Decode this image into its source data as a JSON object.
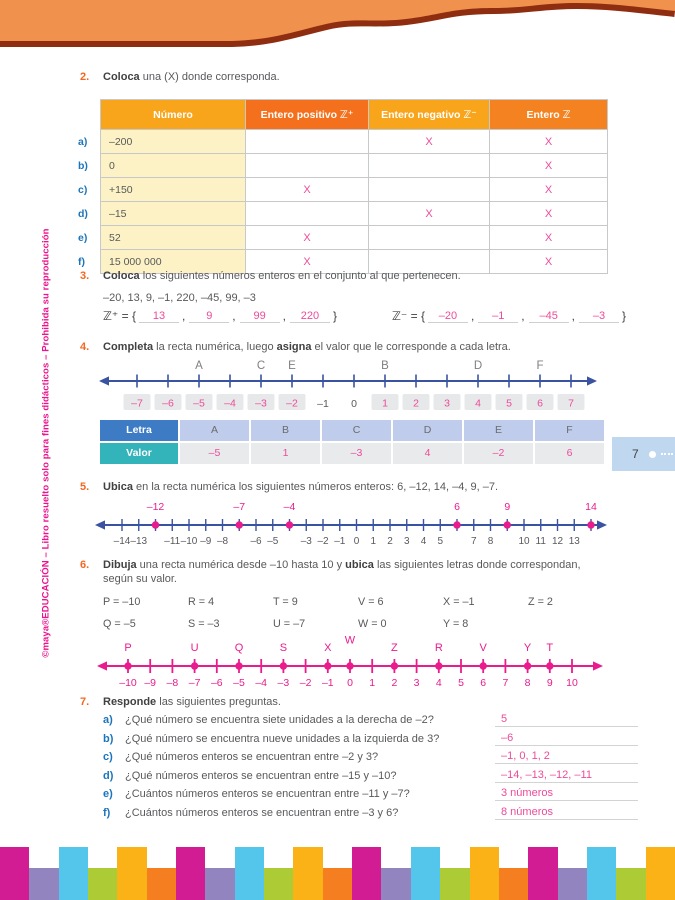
{
  "page": {
    "tab_number": "7",
    "copyright_bold": "©maya®EDUCACIÓN",
    "copyright_rest": " – Libro resuelto solo para fines didácticos – Prohibida su reproducción"
  },
  "colors": {
    "wave_orange": "#F0914E",
    "wave_brown": "#8E2D10",
    "accent_orange": "#F26822",
    "label_blue": "#1C75BC",
    "answer_pink": "#EC4B9B",
    "magenta": "#EA1C8D",
    "navy_line": "#3A53A0",
    "letter_gray": "#7D7F82",
    "tick_gray": "#58595B",
    "box_gray": "#E7E8E9",
    "ex2_header_bg": [
      "#F9A51B",
      "#F4701D",
      "#F9A51B",
      "#F58220"
    ]
  },
  "exercises": {
    "ex2": {
      "number": "2.",
      "title": [
        [
          "b",
          "Coloca"
        ],
        [
          "n",
          " una (X) donde corresponda."
        ]
      ],
      "table": {
        "headers": [
          "Número",
          "Entero positivo ℤ⁺",
          "Entero negativo ℤ⁻",
          "Entero ℤ"
        ],
        "rows": [
          {
            "label": "a)",
            "numero": "–200",
            "marks": [
              "",
              "X",
              "X"
            ]
          },
          {
            "label": "b)",
            "numero": "0",
            "marks": [
              "",
              "",
              "X"
            ]
          },
          {
            "label": "c)",
            "numero": "+150",
            "marks": [
              "X",
              "",
              "X"
            ]
          },
          {
            "label": "d)",
            "numero": "–15",
            "marks": [
              "",
              "X",
              "X"
            ]
          },
          {
            "label": "e)",
            "numero": "52",
            "marks": [
              "X",
              "",
              "X"
            ]
          },
          {
            "label": "f)",
            "numero": "15 000 000",
            "marks": [
              "X",
              "",
              "X"
            ]
          }
        ]
      }
    },
    "ex3": {
      "number": "3.",
      "title": [
        [
          "b",
          "Coloca"
        ],
        [
          "n",
          " los siguientes números enteros en el conjunto al que pertenecen."
        ]
      ],
      "given": "–20, 13, 9, –1, 220, –45, 99, –3",
      "positive_set": {
        "prefix": "ℤ⁺ = {",
        "values": [
          "13",
          "9",
          "99",
          "220"
        ],
        "suffix": "}"
      },
      "negative_set": {
        "prefix": "ℤ⁻ = {",
        "values": [
          "–20",
          "–1",
          "–45",
          "–3"
        ],
        "suffix": "}"
      }
    },
    "ex4": {
      "number": "4.",
      "title": [
        [
          "b",
          "Completa"
        ],
        [
          "n",
          " la recta numérica, luego "
        ],
        [
          "b",
          "asigna"
        ],
        [
          "n",
          " el valor que le corresponde a cada letra."
        ]
      ],
      "line": {
        "min": -7,
        "max": 7,
        "given_labels": [
          -1,
          0
        ],
        "letters": [
          {
            "letter": "A",
            "value": -5
          },
          {
            "letter": "C",
            "value": -3
          },
          {
            "letter": "E",
            "value": -2
          },
          {
            "letter": "B",
            "value": 1
          },
          {
            "letter": "D",
            "value": 4
          },
          {
            "letter": "F",
            "value": 6
          }
        ]
      },
      "table": {
        "letra_header": "Letra",
        "valor_header": "Valor",
        "letters": [
          "A",
          "B",
          "C",
          "D",
          "E",
          "F"
        ],
        "values": [
          "–5",
          "1",
          "–3",
          "4",
          "–2",
          "6"
        ]
      }
    },
    "ex5": {
      "number": "5.",
      "title": [
        [
          "b",
          "Ubica"
        ],
        [
          "n",
          " en la recta numérica los siguientes números enteros: 6, –12, 14, –4, 9, –7."
        ]
      ],
      "line": {
        "min": -14,
        "max": 14,
        "dots": [
          -12,
          -7,
          -4,
          6,
          9,
          14
        ]
      }
    },
    "ex6": {
      "number": "6.",
      "title": [
        [
          "b",
          "Dibuja"
        ],
        [
          "n",
          " una recta numérica desde –10 hasta 10 y "
        ],
        [
          "b",
          "ubica"
        ],
        [
          "n",
          " las siguientes letras donde correspondan,"
        ]
      ],
      "title_line2": "según su valor.",
      "assignments_row1": [
        "P = –10",
        "R = 4",
        "T = 9",
        "V = 6",
        "X = –1",
        "Z = 2"
      ],
      "assignments_row2": [
        "Q = –5",
        "S = –3",
        "U = –7",
        "W = 0",
        "Y = 8"
      ],
      "line": {
        "min": -10,
        "max": 10,
        "letters": [
          {
            "letter": "P",
            "value": -10
          },
          {
            "letter": "U",
            "value": -7
          },
          {
            "letter": "Q",
            "value": -5
          },
          {
            "letter": "S",
            "value": -3
          },
          {
            "letter": "X",
            "value": -1
          },
          {
            "letter": "W",
            "value": 0,
            "raised": true
          },
          {
            "letter": "Z",
            "value": 2
          },
          {
            "letter": "R",
            "value": 4
          },
          {
            "letter": "V",
            "value": 6
          },
          {
            "letter": "Y",
            "value": 8
          },
          {
            "letter": "T",
            "value": 9
          }
        ]
      }
    },
    "ex7": {
      "number": "7.",
      "title": [
        [
          "b",
          "Responde"
        ],
        [
          "n",
          " las siguientes preguntas."
        ]
      ],
      "questions": [
        {
          "label": "a)",
          "q": "¿Qué número se encuentra siete unidades a la derecha de –2?",
          "a": "5"
        },
        {
          "label": "b)",
          "q": "¿Qué número se encuentra nueve unidades a la izquierda de 3?",
          "a": "–6"
        },
        {
          "label": "c)",
          "q": "¿Qué números enteros se encuentran entre –2 y 3?",
          "a": "–1, 0, 1, 2"
        },
        {
          "label": "d)",
          "q": "¿Qué números enteros se encuentran entre –15 y –10?",
          "a": "–14, –13, –12, –11"
        },
        {
          "label": "e)",
          "q": "¿Cuántos números enteros se encuentran entre –11 y –7?",
          "a": "3 números"
        },
        {
          "label": "f)",
          "q": "¿Cuántos números enteros se encuentran entre –3 y 6?",
          "a": "8 números"
        }
      ]
    }
  },
  "footer": {
    "colors": [
      "#D11C94",
      "#9184BF",
      "#54C5EB",
      "#ACCB35",
      "#FBB216",
      "#F57E20"
    ]
  }
}
